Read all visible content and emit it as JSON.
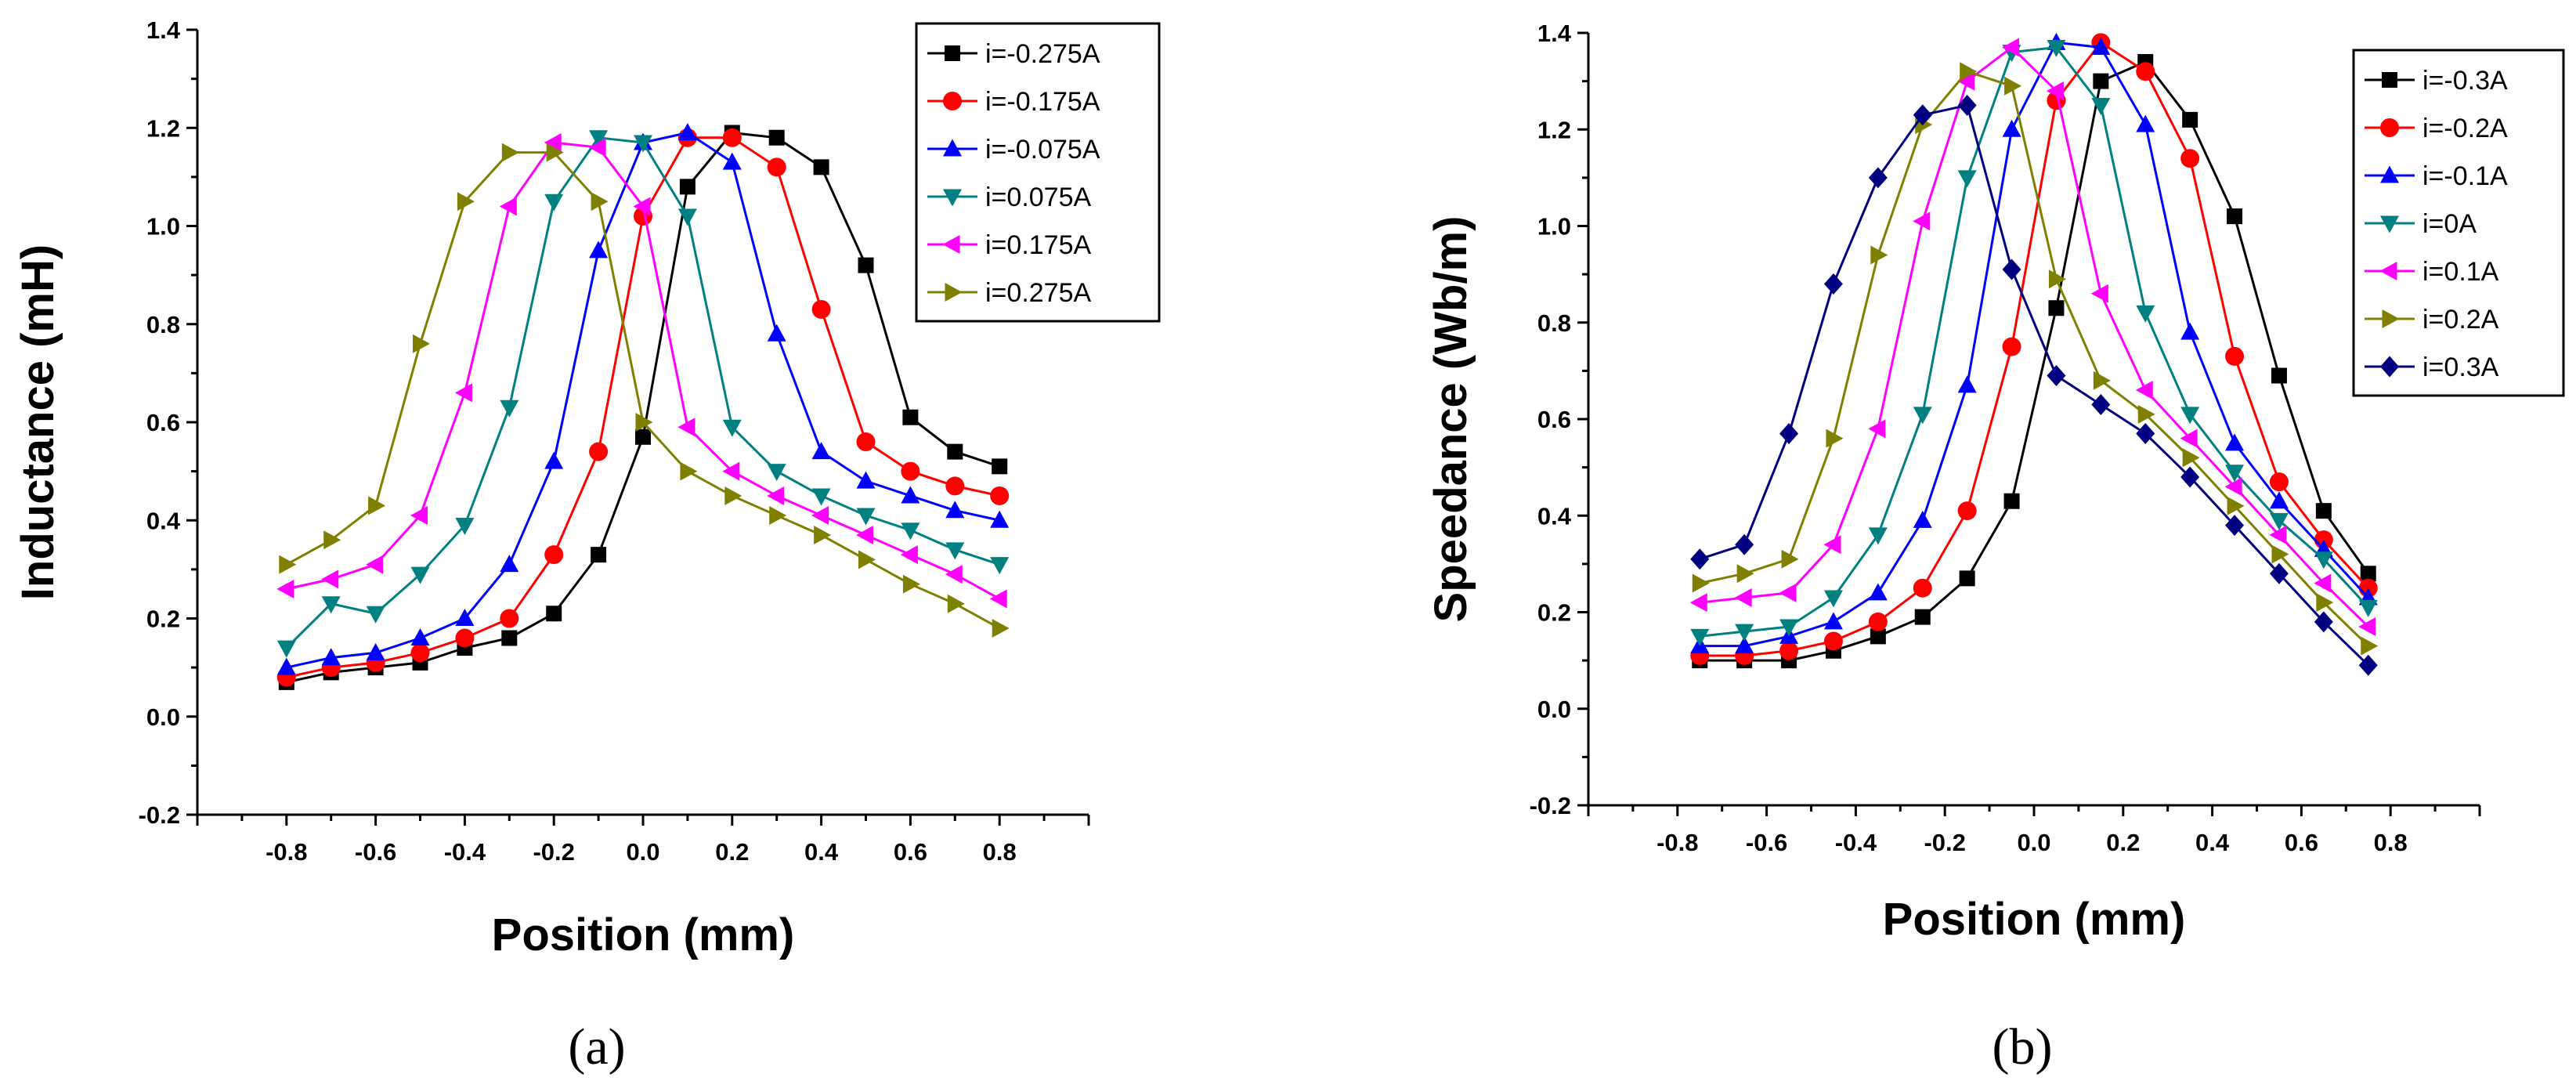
{
  "chart_data": [
    {
      "type": "line",
      "caption": "(a)",
      "xlabel": "Position (mm)",
      "ylabel": "Inductance (mH)",
      "xlim": [
        -1.0,
        1.0
      ],
      "ylim": [
        -0.2,
        1.4
      ],
      "xticks": [
        "-0.8",
        "-0.6",
        "-0.4",
        "-0.2",
        "0.0",
        "0.2",
        "0.4",
        "0.6",
        "0.8"
      ],
      "yticks": [
        "-0.2",
        "0.0",
        "0.2",
        "0.4",
        "0.6",
        "0.8",
        "1.0",
        "1.2",
        "1.4"
      ],
      "legend_position": "top-right",
      "x": [
        -0.8,
        -0.7,
        -0.6,
        -0.5,
        -0.4,
        -0.3,
        -0.2,
        -0.1,
        0.0,
        0.1,
        0.2,
        0.3,
        0.4,
        0.5,
        0.6,
        0.7,
        0.8
      ],
      "series": [
        {
          "name": "i=-0.275A",
          "color": "#000000",
          "marker": "square",
          "values": [
            0.07,
            0.09,
            0.1,
            0.11,
            0.14,
            0.16,
            0.21,
            0.33,
            0.57,
            1.08,
            1.19,
            1.18,
            1.12,
            0.92,
            0.61,
            0.54,
            0.51
          ]
        },
        {
          "name": "i=-0.175A",
          "color": "#ff0000",
          "marker": "circle",
          "values": [
            0.08,
            0.1,
            0.11,
            0.13,
            0.16,
            0.2,
            0.33,
            0.54,
            1.02,
            1.18,
            1.18,
            1.12,
            0.83,
            0.56,
            0.5,
            0.47,
            0.45
          ]
        },
        {
          "name": "i=-0.075A",
          "color": "#0000ff",
          "marker": "triangle-up",
          "values": [
            0.1,
            0.12,
            0.13,
            0.16,
            0.2,
            0.31,
            0.52,
            0.95,
            1.17,
            1.19,
            1.13,
            0.78,
            0.54,
            0.48,
            0.45,
            0.42,
            0.4
          ]
        },
        {
          "name": "i=0.075A",
          "color": "#008080",
          "marker": "triangle-down",
          "values": [
            0.14,
            0.23,
            0.21,
            0.29,
            0.39,
            0.63,
            1.05,
            1.18,
            1.17,
            1.02,
            0.59,
            0.5,
            0.45,
            0.41,
            0.38,
            0.34,
            0.31
          ]
        },
        {
          "name": "i=0.175A",
          "color": "#ff00ff",
          "marker": "triangle-left",
          "values": [
            0.26,
            0.28,
            0.31,
            0.41,
            0.66,
            1.04,
            1.17,
            1.16,
            1.04,
            0.59,
            0.5,
            0.45,
            0.41,
            0.37,
            0.33,
            0.29,
            0.24
          ]
        },
        {
          "name": "i=0.275A",
          "color": "#808000",
          "marker": "triangle-right",
          "values": [
            0.31,
            0.36,
            0.43,
            0.76,
            1.05,
            1.15,
            1.15,
            1.05,
            0.6,
            0.5,
            0.45,
            0.41,
            0.37,
            0.32,
            0.27,
            0.23,
            0.18
          ]
        }
      ]
    },
    {
      "type": "line",
      "caption": "(b)",
      "xlabel": "Position (mm)",
      "ylabel": "Speedance (Wb/m)",
      "xlim": [
        -1.0,
        1.0
      ],
      "ylim": [
        -0.2,
        1.4
      ],
      "xticks": [
        "-0.8",
        "-0.6",
        "-0.4",
        "-0.2",
        "0.0",
        "0.2",
        "0.4",
        "0.6",
        "0.8"
      ],
      "yticks": [
        "-0.2",
        "0.0",
        "0.2",
        "0.4",
        "0.6",
        "0.8",
        "1.0",
        "1.2",
        "1.4"
      ],
      "legend_position": "top-right",
      "x": [
        -0.75,
        -0.65,
        -0.55,
        -0.45,
        -0.35,
        -0.25,
        -0.15,
        -0.05,
        0.05,
        0.15,
        0.25,
        0.35,
        0.45,
        0.55,
        0.65,
        0.75
      ],
      "series": [
        {
          "name": "i=-0.3A",
          "color": "#000000",
          "marker": "square",
          "values": [
            0.1,
            0.1,
            0.1,
            0.12,
            0.15,
            0.19,
            0.27,
            0.43,
            0.83,
            1.3,
            1.34,
            1.22,
            1.02,
            0.69,
            0.41,
            0.28
          ]
        },
        {
          "name": "i=-0.2A",
          "color": "#ff0000",
          "marker": "circle",
          "values": [
            0.11,
            0.11,
            0.12,
            0.14,
            0.18,
            0.25,
            0.41,
            0.75,
            1.26,
            1.38,
            1.32,
            1.14,
            0.73,
            0.47,
            0.35,
            0.25
          ]
        },
        {
          "name": "i=-0.1A",
          "color": "#0000ff",
          "marker": "triangle-up",
          "values": [
            0.13,
            0.13,
            0.15,
            0.18,
            0.24,
            0.39,
            0.67,
            1.2,
            1.38,
            1.37,
            1.21,
            0.78,
            0.55,
            0.43,
            0.33,
            0.23
          ]
        },
        {
          "name": "i=0A",
          "color": "#008080",
          "marker": "triangle-down",
          "values": [
            0.15,
            0.16,
            0.17,
            0.23,
            0.36,
            0.61,
            1.1,
            1.36,
            1.37,
            1.25,
            0.82,
            0.61,
            0.49,
            0.39,
            0.31,
            0.21
          ]
        },
        {
          "name": "i=0.1A",
          "color": "#ff00ff",
          "marker": "triangle-left",
          "values": [
            0.22,
            0.23,
            0.24,
            0.34,
            0.58,
            1.01,
            1.3,
            1.37,
            1.28,
            0.86,
            0.66,
            0.56,
            0.46,
            0.36,
            0.26,
            0.17
          ]
        },
        {
          "name": "i=0.2A",
          "color": "#808000",
          "marker": "triangle-right",
          "values": [
            0.26,
            0.28,
            0.31,
            0.56,
            0.94,
            1.21,
            1.32,
            1.29,
            0.89,
            0.68,
            0.61,
            0.52,
            0.42,
            0.32,
            0.22,
            0.13
          ]
        },
        {
          "name": "i=0.3A",
          "color": "#000080",
          "marker": "diamond",
          "values": [
            0.31,
            0.34,
            0.57,
            0.88,
            1.1,
            1.23,
            1.25,
            0.91,
            0.69,
            0.63,
            0.57,
            0.48,
            0.38,
            0.28,
            0.18,
            0.09
          ]
        }
      ]
    }
  ]
}
